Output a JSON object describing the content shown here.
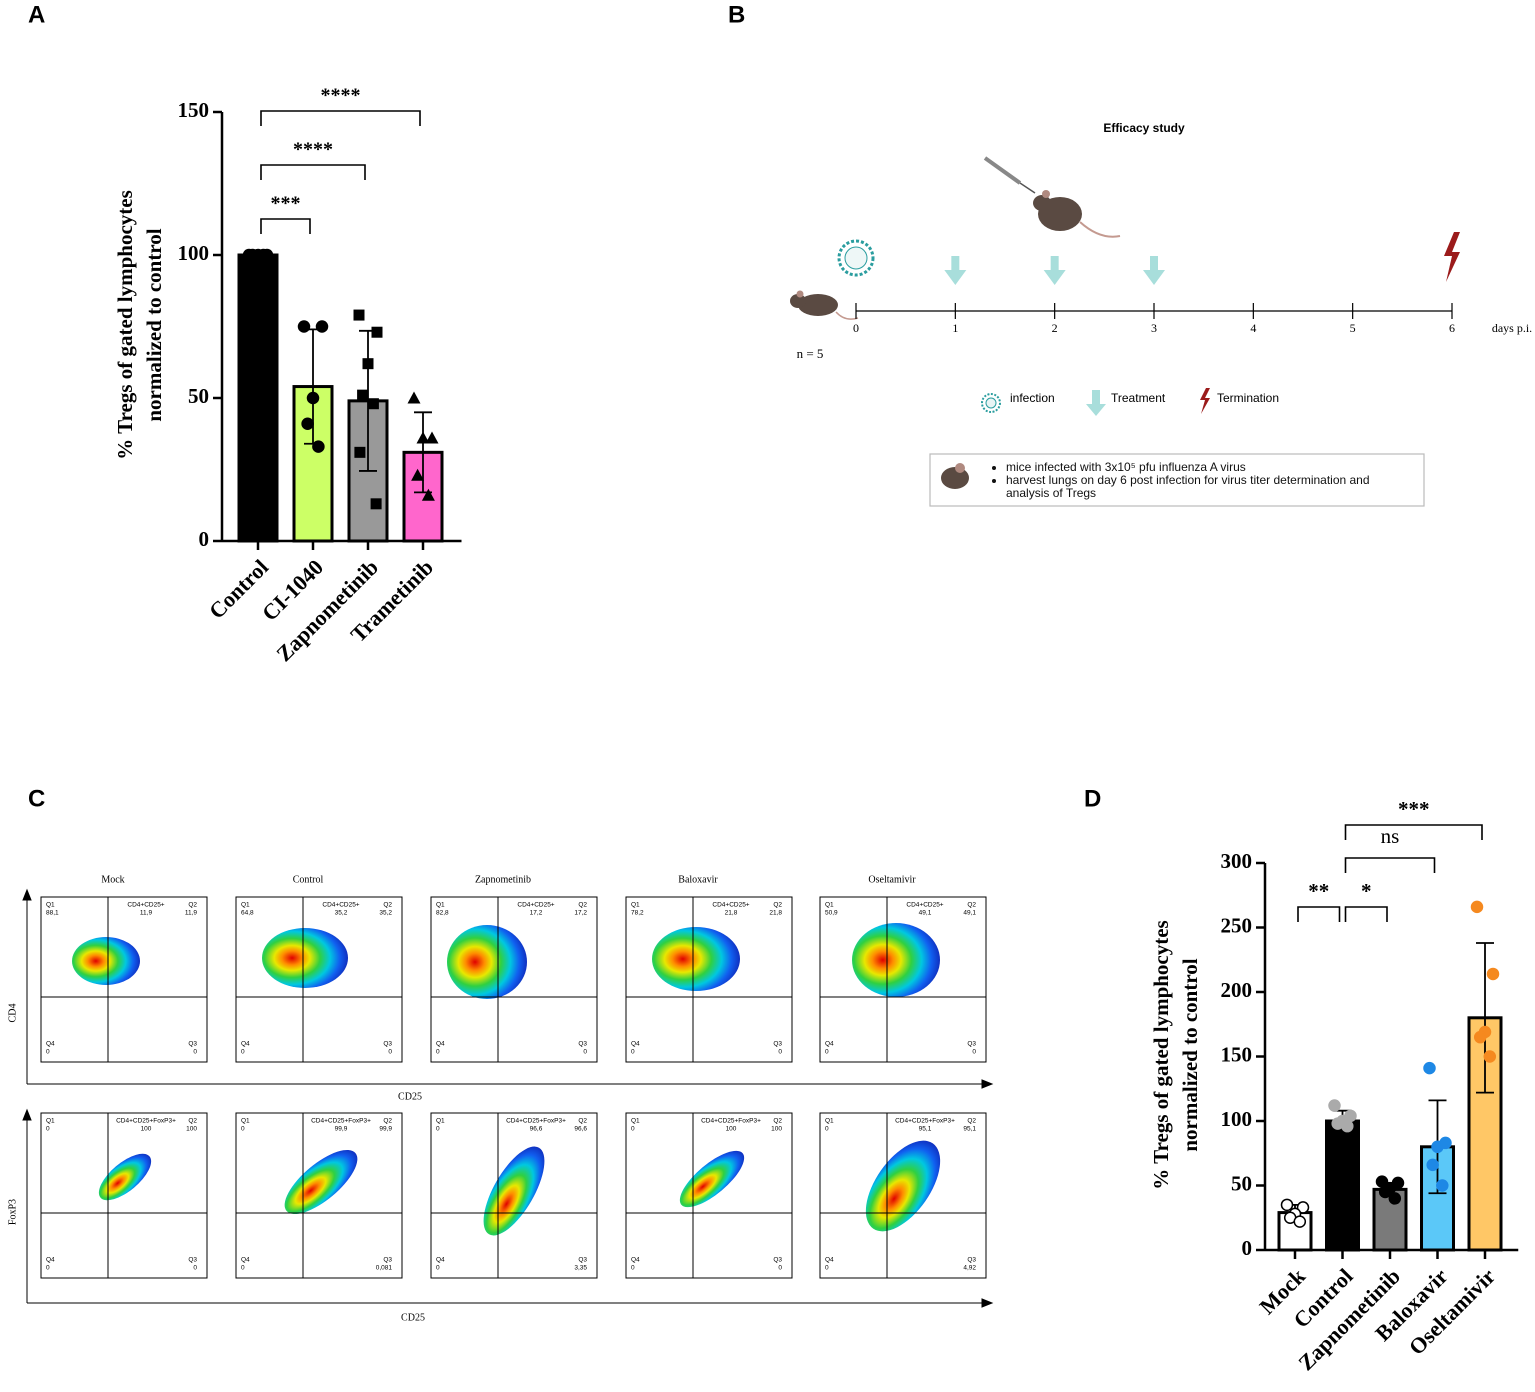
{
  "chart_data": [
    {
      "type": "bar",
      "panel": "A",
      "ylabel": [
        "% Tregs of gated lymphocytes",
        "normalized to control"
      ],
      "categories": [
        "Control",
        "CI-1040",
        "Zapnometinib",
        "Trametinib"
      ],
      "values": [
        100,
        54,
        49,
        31
      ],
      "errors": [
        0,
        20,
        24.5,
        14
      ],
      "points": [
        [
          100,
          100,
          100,
          100,
          100
        ],
        [
          75,
          75,
          50,
          41,
          33
        ],
        [
          79,
          73,
          62,
          51,
          48,
          31,
          13
        ],
        [
          50,
          36,
          36,
          23,
          16
        ]
      ],
      "colors": [
        "#000000",
        "#ccff66",
        "#999999",
        "#ff66cc"
      ],
      "point_colors": [
        "#000000",
        "#000000",
        "#000000",
        "#000000"
      ],
      "markers": [
        "circle",
        "circle",
        "square",
        "triangle"
      ],
      "ylim": [
        0,
        150
      ],
      "yticks": [
        0,
        50,
        100,
        150
      ],
      "significance": [
        {
          "groups": [
            "Control",
            "CI-1040"
          ],
          "label": "***"
        },
        {
          "groups": [
            "Control",
            "Zapnometinib"
          ],
          "label": "****"
        },
        {
          "groups": [
            "Control",
            "Trametinib"
          ],
          "label": "****"
        }
      ]
    },
    {
      "type": "timeline",
      "panel": "B",
      "title": "Efficacy study",
      "xlim": [
        0,
        6
      ],
      "xticks": [
        0,
        1,
        2,
        3,
        4,
        5,
        6
      ],
      "xlabel": "days p.i.",
      "n_label": "n = 5",
      "events": [
        {
          "name": "infection",
          "days": [
            0
          ],
          "color": "#2a9d9f"
        },
        {
          "name": "Treatment",
          "days": [
            1,
            2,
            3
          ],
          "color": "#a8dedb"
        },
        {
          "name": "Termination",
          "days": [
            6
          ],
          "color": "#9b1b1b"
        }
      ],
      "notes": [
        "mice infected with 3x10⁵ pfu influenza A virus",
        "harvest lungs on day 6  post infection  for virus titer determination and analysis of Tregs"
      ]
    },
    {
      "type": "flow-cytometry",
      "panel": "C",
      "columns": [
        "Mock",
        "Control",
        "Zapnometinib",
        "Baloxavir",
        "Oseltamivir"
      ],
      "quadrants": [
        "Q1",
        "Q2",
        "Q3",
        "Q4"
      ],
      "rows": [
        {
          "ylabel": "CD4",
          "xlabel": "CD25",
          "gate": "CD4+CD25+",
          "plots": [
            {
              "q1": "88,1",
              "q2": "11,9",
              "q3": "0",
              "q4": "0"
            },
            {
              "q1": "64,8",
              "q2": "35,2",
              "q3": "0",
              "q4": "0"
            },
            {
              "q1": "82,8",
              "q2": "17,2",
              "q3": "0",
              "q4": "0"
            },
            {
              "q1": "78,2",
              "q2": "21,8",
              "q3": "0",
              "q4": "0"
            },
            {
              "q1": "50,9",
              "q2": "49,1",
              "q3": "0",
              "q4": "0"
            }
          ]
        },
        {
          "ylabel": "FoxP3",
          "xlabel": "CD25",
          "gate": "CD4+CD25+FoxP3+",
          "plots": [
            {
              "q1": "0",
              "q2": "100",
              "q3": "0",
              "q4": "0"
            },
            {
              "q1": "0",
              "q2": "99,9",
              "q3": "0,081",
              "q4": "0"
            },
            {
              "q1": "0",
              "q2": "96,6",
              "q3": "3,35",
              "q4": "0"
            },
            {
              "q1": "0",
              "q2": "100",
              "q3": "0",
              "q4": "0"
            },
            {
              "q1": "0",
              "q2": "95,1",
              "q3": "4,92",
              "q4": "0"
            }
          ]
        }
      ]
    },
    {
      "type": "bar",
      "panel": "D",
      "ylabel": [
        "% Tregs  of gated lymphocytes",
        "normalized to control"
      ],
      "categories": [
        "Mock",
        "Control",
        "Zapnometinib",
        "Baloxavir",
        "Oseltamivir"
      ],
      "values": [
        29,
        100,
        47,
        80,
        180
      ],
      "errors": [
        6,
        8,
        5,
        36,
        58
      ],
      "points": [
        [
          35,
          33,
          28,
          25,
          22
        ],
        [
          112,
          104,
          100,
          98,
          96
        ],
        [
          53,
          52,
          48,
          45,
          40
        ],
        [
          141,
          83,
          80,
          66,
          50
        ],
        [
          266,
          214,
          169,
          165,
          150
        ]
      ],
      "colors": [
        "#ffffff",
        "#000000",
        "#7a7a7a",
        "#5bc8f8",
        "#ffc766"
      ],
      "point_colors": [
        "#ffffff",
        "#aaaaaa",
        "#000000",
        "#1e88e5",
        "#f5891f"
      ],
      "markers": [
        "circle",
        "circle",
        "circle",
        "circle",
        "circle"
      ],
      "ylim": [
        0,
        300
      ],
      "yticks": [
        0,
        50,
        100,
        150,
        200,
        250,
        300
      ],
      "significance": [
        {
          "groups": [
            "Mock",
            "Control"
          ],
          "label": "**"
        },
        {
          "groups": [
            "Control",
            "Zapnometinib"
          ],
          "label": "*"
        },
        {
          "groups": [
            "Control",
            "Baloxavir"
          ],
          "label": "ns"
        },
        {
          "groups": [
            "Control",
            "Oseltamivir"
          ],
          "label": "***"
        }
      ]
    }
  ]
}
